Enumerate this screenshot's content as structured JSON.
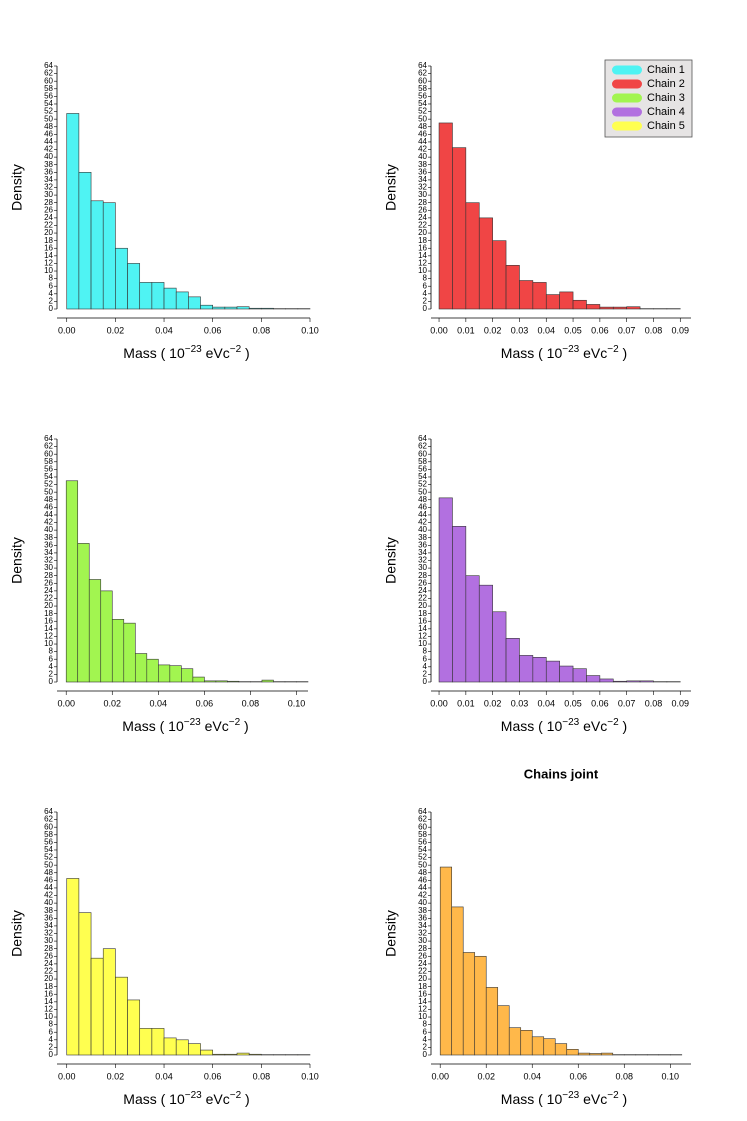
{
  "chart_data": [
    {
      "type": "histogram",
      "ylabel": "Density",
      "xlabel": [
        "Mass ( 10",
        "−23",
        " eVc",
        "−2",
        " )"
      ],
      "bins": [
        0,
        0.005,
        0.01,
        0.015,
        0.02,
        0.025,
        0.03,
        0.035,
        0.04,
        0.045,
        0.05,
        0.055,
        0.06,
        0.065,
        0.07,
        0.075,
        0.08,
        0.085,
        0.09,
        0.095,
        0.1
      ],
      "series": [
        {
          "name": "Chain 1",
          "color": "#4ff3f3",
          "values": [
            51.5,
            36,
            28.5,
            28,
            16,
            12,
            7,
            7,
            5.5,
            4.5,
            3.2,
            1,
            0.5,
            0.5,
            0.6,
            0.2,
            0.2,
            0.1,
            0.1,
            0.1
          ]
        }
      ],
      "xlim": [
        -0.004,
        0.1
      ],
      "ylim": [
        0,
        64
      ],
      "xticks": [
        {
          "value": 0,
          "label": "0.00"
        },
        {
          "value": 0.02,
          "label": "0.02"
        },
        {
          "value": 0.04,
          "label": "0.04"
        },
        {
          "value": 0.06,
          "label": "0.06"
        },
        {
          "value": 0.08,
          "label": "0.08"
        },
        {
          "value": 0.1,
          "label": "0.10"
        }
      ],
      "yticks": [
        0,
        2,
        4,
        6,
        8,
        10,
        12,
        14,
        16,
        18,
        20,
        22,
        24,
        26,
        28,
        30,
        32,
        34,
        36,
        38,
        40,
        42,
        44,
        46,
        48,
        50,
        52,
        54,
        56,
        58,
        60,
        62,
        64
      ]
    },
    {
      "type": "histogram",
      "ylabel": "Density",
      "xlabel": [
        "Mass ( 10",
        "−23",
        " eVc",
        "−2",
        " )"
      ],
      "legend": "upper right",
      "bins": [
        0,
        0.005,
        0.01,
        0.015,
        0.02,
        0.025,
        0.03,
        0.035,
        0.04,
        0.045,
        0.05,
        0.055,
        0.06,
        0.065,
        0.07,
        0.075,
        0.08,
        0.085,
        0.09
      ],
      "series": [
        {
          "name": "Chain 2",
          "color": "#f04545",
          "values": [
            49,
            42.5,
            28,
            24,
            18,
            11.5,
            7.5,
            7,
            3.8,
            4.5,
            2.3,
            1.2,
            0.5,
            0.5,
            0.6,
            0.1,
            0.1,
            0.1
          ]
        }
      ],
      "xlim": [
        -0.003,
        0.094
      ],
      "ylim": [
        0,
        64
      ],
      "xticks": [
        {
          "value": 0,
          "label": "0.00"
        },
        {
          "value": 0.01,
          "label": "0.01"
        },
        {
          "value": 0.02,
          "label": "0.02"
        },
        {
          "value": 0.03,
          "label": "0.03"
        },
        {
          "value": 0.04,
          "label": "0.04"
        },
        {
          "value": 0.05,
          "label": "0.05"
        },
        {
          "value": 0.06,
          "label": "0.06"
        },
        {
          "value": 0.07,
          "label": "0.07"
        },
        {
          "value": 0.08,
          "label": "0.08"
        },
        {
          "value": 0.09,
          "label": "0.09"
        }
      ],
      "yticks": [
        0,
        2,
        4,
        6,
        8,
        10,
        12,
        14,
        16,
        18,
        20,
        22,
        24,
        26,
        28,
        30,
        32,
        34,
        36,
        38,
        40,
        42,
        44,
        46,
        48,
        50,
        52,
        54,
        56,
        58,
        60,
        62,
        64
      ]
    },
    {
      "type": "histogram",
      "ylabel": "Density",
      "xlabel": [
        "Mass ( 10",
        "−23",
        " eVc",
        "−2",
        " )"
      ],
      "bins": [
        0,
        0.005,
        0.01,
        0.015,
        0.02,
        0.025,
        0.03,
        0.035,
        0.04,
        0.045,
        0.05,
        0.055,
        0.06,
        0.065,
        0.07,
        0.075,
        0.08,
        0.085,
        0.09,
        0.095,
        0.1,
        0.105
      ],
      "series": [
        {
          "name": "Chain 3",
          "color": "#a2f550",
          "values": [
            53,
            36.5,
            27,
            24,
            16.5,
            15.5,
            7.5,
            6,
            4.5,
            4.3,
            3.5,
            1.3,
            0.3,
            0.3,
            0.2,
            0.1,
            0.1,
            0.5,
            0.1,
            0.1,
            0.1
          ]
        }
      ],
      "xlim": [
        -0.004,
        0.105
      ],
      "ylim": [
        0,
        64
      ],
      "xticks": [
        {
          "value": 0,
          "label": "0.00"
        },
        {
          "value": 0.02,
          "label": "0.02"
        },
        {
          "value": 0.04,
          "label": "0.04"
        },
        {
          "value": 0.06,
          "label": "0.06"
        },
        {
          "value": 0.08,
          "label": "0.08"
        },
        {
          "value": 0.1,
          "label": "0.10"
        }
      ],
      "yticks": [
        0,
        2,
        4,
        6,
        8,
        10,
        12,
        14,
        16,
        18,
        20,
        22,
        24,
        26,
        28,
        30,
        32,
        34,
        36,
        38,
        40,
        42,
        44,
        46,
        48,
        50,
        52,
        54,
        56,
        58,
        60,
        62,
        64
      ]
    },
    {
      "type": "histogram",
      "ylabel": "Density",
      "xlabel": [
        "Mass ( 10",
        "−23",
        " eVc",
        "−2",
        " )"
      ],
      "bins": [
        0,
        0.005,
        0.01,
        0.015,
        0.02,
        0.025,
        0.03,
        0.035,
        0.04,
        0.045,
        0.05,
        0.055,
        0.06,
        0.065,
        0.07,
        0.075,
        0.08,
        0.085,
        0.09
      ],
      "series": [
        {
          "name": "Chain 4",
          "color": "#b270e0",
          "values": [
            48.5,
            41,
            28,
            25.5,
            18.5,
            11.5,
            7,
            6.5,
            5.5,
            4.2,
            3.5,
            1.7,
            0.8,
            0.2,
            0.3,
            0.3,
            0.1,
            0.1
          ]
        }
      ],
      "xlim": [
        -0.003,
        0.094
      ],
      "ylim": [
        0,
        64
      ],
      "xticks": [
        {
          "value": 0,
          "label": "0.00"
        },
        {
          "value": 0.01,
          "label": "0.01"
        },
        {
          "value": 0.02,
          "label": "0.02"
        },
        {
          "value": 0.03,
          "label": "0.03"
        },
        {
          "value": 0.04,
          "label": "0.04"
        },
        {
          "value": 0.05,
          "label": "0.05"
        },
        {
          "value": 0.06,
          "label": "0.06"
        },
        {
          "value": 0.07,
          "label": "0.07"
        },
        {
          "value": 0.08,
          "label": "0.08"
        },
        {
          "value": 0.09,
          "label": "0.09"
        }
      ],
      "yticks": [
        0,
        2,
        4,
        6,
        8,
        10,
        12,
        14,
        16,
        18,
        20,
        22,
        24,
        26,
        28,
        30,
        32,
        34,
        36,
        38,
        40,
        42,
        44,
        46,
        48,
        50,
        52,
        54,
        56,
        58,
        60,
        62,
        64
      ]
    },
    {
      "type": "histogram",
      "ylabel": "Density",
      "xlabel": [
        "Mass ( 10",
        "−23",
        " eVc",
        "−2",
        " )"
      ],
      "bins": [
        0,
        0.005,
        0.01,
        0.015,
        0.02,
        0.025,
        0.03,
        0.035,
        0.04,
        0.045,
        0.05,
        0.055,
        0.06,
        0.065,
        0.07,
        0.075,
        0.08,
        0.085,
        0.09,
        0.095,
        0.1
      ],
      "series": [
        {
          "name": "Chain 5",
          "color": "#ffff50",
          "values": [
            46.5,
            37.5,
            25.5,
            28,
            20.5,
            14.5,
            7,
            7,
            4.5,
            4,
            3,
            1.3,
            0.2,
            0.2,
            0.5,
            0.2,
            0.1,
            0.1,
            0.1,
            0.1
          ]
        }
      ],
      "xlim": [
        -0.004,
        0.1
      ],
      "ylim": [
        0,
        64
      ],
      "xticks": [
        {
          "value": 0,
          "label": "0.00"
        },
        {
          "value": 0.02,
          "label": "0.02"
        },
        {
          "value": 0.04,
          "label": "0.04"
        },
        {
          "value": 0.06,
          "label": "0.06"
        },
        {
          "value": 0.08,
          "label": "0.08"
        },
        {
          "value": 0.1,
          "label": "0.10"
        }
      ],
      "yticks": [
        0,
        2,
        4,
        6,
        8,
        10,
        12,
        14,
        16,
        18,
        20,
        22,
        24,
        26,
        28,
        30,
        32,
        34,
        36,
        38,
        40,
        42,
        44,
        46,
        48,
        50,
        52,
        54,
        56,
        58,
        60,
        62,
        64
      ]
    },
    {
      "type": "histogram",
      "title": "Chains joint",
      "ylabel": "Density",
      "xlabel": [
        "Mass ( 10",
        "−23",
        " eVc",
        "−2",
        " )"
      ],
      "bins": [
        0,
        0.005,
        0.01,
        0.015,
        0.02,
        0.025,
        0.03,
        0.035,
        0.04,
        0.045,
        0.05,
        0.055,
        0.06,
        0.065,
        0.07,
        0.075,
        0.08,
        0.085,
        0.09,
        0.095,
        0.1,
        0.105
      ],
      "series": [
        {
          "color": "#ffb84a",
          "values": [
            49.5,
            39,
            27,
            26,
            17.8,
            13,
            7.2,
            6.5,
            4.8,
            4.3,
            3,
            1.5,
            0.5,
            0.4,
            0.5,
            0.1,
            0.1,
            0.1,
            0.1,
            0.1,
            0.1
          ]
        }
      ],
      "xlim": [
        -0.004,
        0.109
      ],
      "ylim": [
        0,
        64
      ],
      "xticks": [
        {
          "value": 0,
          "label": "0.00"
        },
        {
          "value": 0.02,
          "label": "0.02"
        },
        {
          "value": 0.04,
          "label": "0.04"
        },
        {
          "value": 0.06,
          "label": "0.06"
        },
        {
          "value": 0.08,
          "label": "0.08"
        },
        {
          "value": 0.1,
          "label": "0.10"
        }
      ],
      "yticks": [
        0,
        2,
        4,
        6,
        8,
        10,
        12,
        14,
        16,
        18,
        20,
        22,
        24,
        26,
        28,
        30,
        32,
        34,
        36,
        38,
        40,
        42,
        44,
        46,
        48,
        50,
        52,
        54,
        56,
        58,
        60,
        62,
        64
      ]
    }
  ]
}
